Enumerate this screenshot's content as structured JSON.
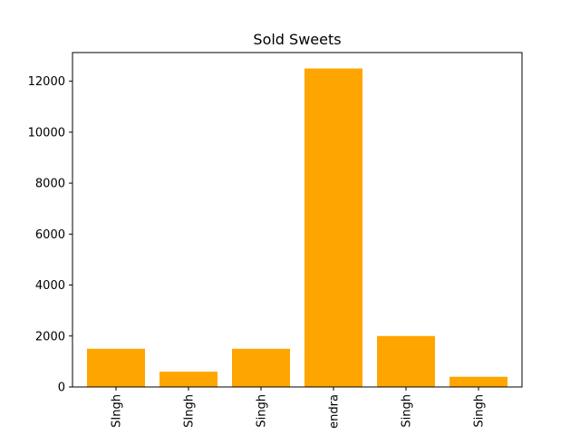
{
  "chart_data": {
    "type": "bar",
    "title": "Sold Sweets",
    "xlabel": "",
    "ylabel": "",
    "categories": [
      "SIngh",
      "SIngh",
      "Singh",
      "endra",
      "Singh",
      "Singh"
    ],
    "values": [
      1500,
      600,
      1500,
      12500,
      2000,
      400
    ],
    "ylim": [
      0,
      13125
    ],
    "yticks": [
      0,
      2000,
      4000,
      6000,
      8000,
      10000,
      12000
    ],
    "ytick_labels": [
      "0",
      "2000",
      "4000",
      "6000",
      "8000",
      "10000",
      "12000"
    ],
    "bar_color": "#ffa500",
    "grid": false,
    "legend": "none",
    "xtick_rotation": "vertical"
  }
}
